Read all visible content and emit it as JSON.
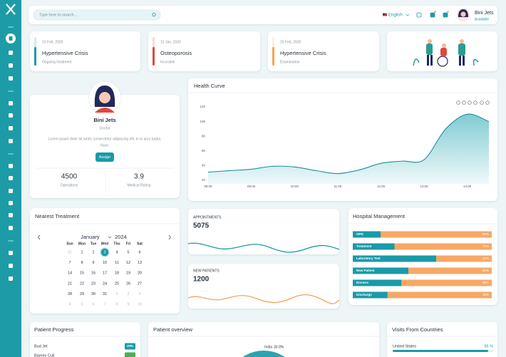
{
  "topbar": {
    "search_placeholder": "Type here to search...",
    "language": "English",
    "user_name": "Bini Jets",
    "user_status": "Available"
  },
  "alerts": [
    {
      "date": "10 Feb, 2020",
      "title": "Hypertensive Crisis",
      "status": "Ongoing treatment",
      "color": "#1a9aa8"
    },
    {
      "date": "12 Jan, 2020",
      "title": "Osteoporosis",
      "status": "Incurable",
      "color": "#e2473b"
    },
    {
      "date": "15 Feb, 2020",
      "title": "Hypertensive Crisis",
      "status": "Examination",
      "color": "#f4a35b"
    }
  ],
  "profile": {
    "name": "Bini Jets",
    "role": "Doctor",
    "bio_lines": [
      "Lorem ipsum dolor sit amet, consectetur adipiscing elit. In in arcu turpis.",
      "Nunc"
    ],
    "button": "Assign",
    "stats": [
      {
        "value": 4500,
        "label": "Operations"
      },
      {
        "value": 3.9,
        "label": "Medical Rating"
      }
    ]
  },
  "health": {
    "chart_data": {
      "type": "area",
      "title": "Health Curve",
      "x": [
        8,
        8.5,
        9,
        9.5,
        10,
        10.5,
        11,
        11.5,
        12,
        12.5,
        13,
        13.5,
        14,
        14.5
      ],
      "values": [
        31,
        33,
        35,
        39,
        38,
        33,
        29,
        34,
        43,
        46,
        48,
        90,
        110,
        100
      ],
      "xlim": [
        8,
        14.5
      ],
      "xticks": [
        {
          "value": 8,
          "label": "08:00"
        },
        {
          "value": 9,
          "label": "09:00"
        },
        {
          "value": 10,
          "label": "10:00"
        },
        {
          "value": 11,
          "label": "11:00"
        },
        {
          "value": 12,
          "label": "12:00"
        },
        {
          "value": 13,
          "label": "13:00"
        },
        {
          "value": 14,
          "label": "14:00"
        }
      ],
      "ylim": [
        15,
        120
      ],
      "yticks": [
        20,
        40,
        60,
        80,
        100,
        120
      ],
      "grid": false,
      "color": "#1e8f9c"
    }
  },
  "calendar": {
    "title": "Nearest Treatment",
    "month": "January",
    "year": "2024",
    "weekdays": [
      "Sun",
      "Mon",
      "Tue",
      "Wed",
      "Thu",
      "Fri",
      "Sat"
    ],
    "weeks": [
      [
        31,
        1,
        2,
        3,
        4,
        5,
        6
      ],
      [
        7,
        8,
        9,
        10,
        11,
        12,
        13
      ],
      [
        14,
        15,
        16,
        17,
        18,
        19,
        20
      ],
      [
        21,
        22,
        23,
        24,
        25,
        26,
        27
      ],
      [
        28,
        29,
        30,
        31,
        1,
        2,
        3
      ],
      [
        4,
        5,
        6,
        7,
        8,
        9,
        10
      ]
    ]
  },
  "appointments": {
    "label": "APPOINTMENTS",
    "value": 5075
  },
  "new_patients": {
    "label": "NEW PATIENTS",
    "value": 1200
  },
  "hospital": {
    "chart_data": {
      "type": "bar",
      "title": "Hospital Management",
      "categories": [
        "OPD",
        "Treatment",
        "Laboratory Test",
        "New Patient",
        "Doctors",
        "Discharge"
      ],
      "values": [
        80,
        70,
        40,
        60,
        65,
        75
      ],
      "value_labels": [
        "80%",
        "70%",
        "40%",
        "60%",
        "65%",
        "75%"
      ],
      "xlim": [
        0,
        100
      ],
      "color": "#f7a866",
      "track_color": "#1a9aa8"
    }
  },
  "patient_progress": {
    "title": "Patient Progress",
    "rows": [
      {
        "name": "Bud Jet",
        "badge": "30%",
        "color": "#1a9aa8"
      },
      {
        "name": "Barney Cull",
        "color": "#4caf50"
      }
    ]
  },
  "patient_overview": {
    "title": "Patient overview",
    "chart_data": {
      "type": "pie",
      "categories": [
        "India"
      ],
      "values": [
        30.0
      ],
      "value_labels": [
        "30.0%"
      ],
      "color": "#2aa5b0"
    }
  },
  "visits": {
    "title": "Visits From Countries",
    "rows": [
      {
        "country": "United States",
        "value": 95,
        "label": "95 %"
      }
    ],
    "color": "#1a9aa8"
  }
}
